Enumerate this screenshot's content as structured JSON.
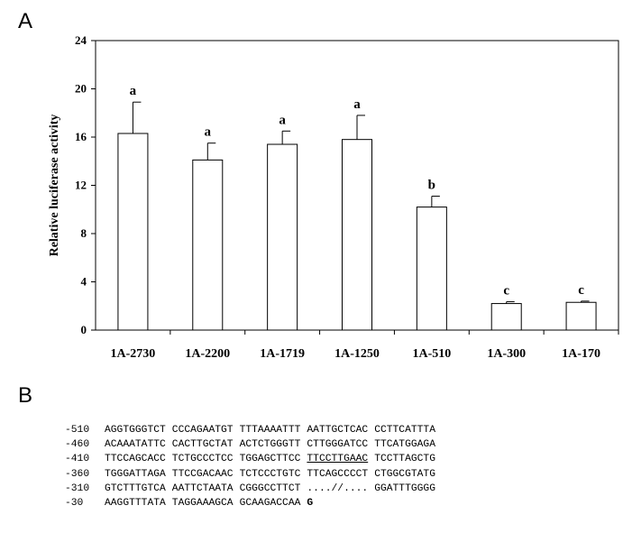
{
  "panel_a_label": "A",
  "panel_b_label": "B",
  "chart_data": {
    "type": "bar",
    "title": "",
    "xlabel": "",
    "ylabel": "Relative luciferase activity",
    "ylim": [
      0,
      24
    ],
    "yticks": [
      "0",
      "4",
      "8",
      "12",
      "16",
      "20",
      "24"
    ],
    "categories": [
      "1A-2730",
      "1A-2200",
      "1A-1719",
      "1A-1250",
      "1A-510",
      "1A-300",
      "1A-170"
    ],
    "values": [
      16.3,
      14.1,
      15.4,
      15.8,
      10.2,
      2.2,
      2.3
    ],
    "errors": [
      2.6,
      1.4,
      1.1,
      2.0,
      0.9,
      0.15,
      0.1
    ],
    "significance": [
      "a",
      "a",
      "a",
      "a",
      "b",
      "c",
      "c"
    ],
    "bar_color": "#ffffff",
    "bar_edge_color": "#000000",
    "grid": false
  },
  "sequence": [
    {
      "pos": "-510",
      "chunks": [
        {
          "t": "AGGTGGGTCT"
        },
        {
          "t": "CCCAGAATGT"
        },
        {
          "t": "TTTAAAATTT"
        },
        {
          "t": "AATTGCTCAC"
        },
        {
          "t": "CCTTCATTTA"
        }
      ]
    },
    {
      "pos": "-460",
      "chunks": [
        {
          "t": "ACAAATATTC"
        },
        {
          "t": "CACTTGCTAT"
        },
        {
          "t": "ACTCTGGGTT"
        },
        {
          "t": "CTTGGGATCC"
        },
        {
          "t": "TTCATGGAGA"
        }
      ]
    },
    {
      "pos": "-410",
      "chunks": [
        {
          "t": "TTCCAGCACC"
        },
        {
          "t": "TCTGCCCTCC"
        },
        {
          "t": "TGGAGCTTCC"
        },
        {
          "t": "TTCCTTGAAC",
          "style": "ul"
        },
        {
          "t": "TCCTTAGCTG"
        }
      ]
    },
    {
      "pos": "-360",
      "chunks": [
        {
          "t": "TGGGATTAGA"
        },
        {
          "t": "TTCCGACAAC"
        },
        {
          "t": "TCTCCCTGTC"
        },
        {
          "t": "TTCAGCCCCT"
        },
        {
          "t": "CTGGCGTATG"
        }
      ]
    },
    {
      "pos": "-310",
      "chunks": [
        {
          "t": "GTCTTTGTCA"
        },
        {
          "t": "AATTCTAATA"
        },
        {
          "t": "CGGGCCTTCT"
        },
        {
          "t": "....//...."
        },
        {
          "t": "GGATTTGGGG"
        }
      ]
    },
    {
      "pos": "-30",
      "chunks": [
        {
          "t": "AAGGTTTATA"
        },
        {
          "t": "TAGGAAAGCA"
        },
        {
          "t": "GCAAGACCAA"
        },
        {
          "t": "G",
          "style": "bold"
        }
      ]
    }
  ]
}
